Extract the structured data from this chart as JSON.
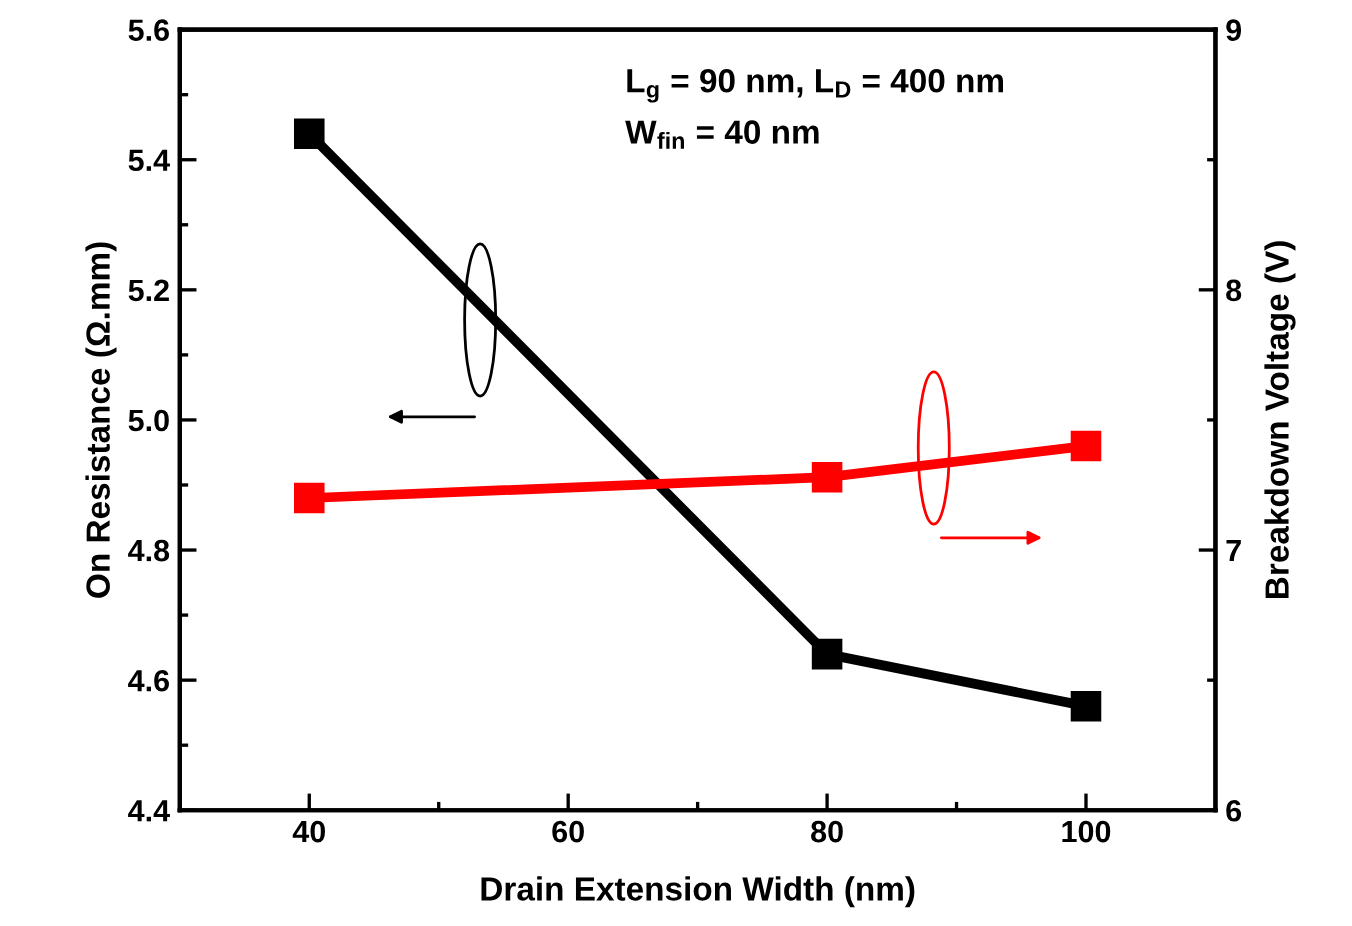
{
  "chart_data": {
    "type": "line",
    "xlabel": "Drain Extension Width (nm)",
    "ylabel": "On Resistance (Ω.mm)",
    "y2label": "Breakdown Voltage (V)",
    "x": [
      40,
      80,
      100
    ],
    "series": [
      {
        "color": "#000000",
        "values": [
          5.44,
          4.64,
          4.56
        ]
      },
      {
        "color": "#ff0000",
        "values": [
          7.2,
          7.28,
          7.4
        ],
        "axis": "y2"
      }
    ],
    "xlim": [
      30,
      110
    ],
    "xticks": [
      40,
      60,
      80,
      100
    ],
    "ylim": [
      4.4,
      5.6
    ],
    "yticks": [
      4.4,
      4.6,
      4.8,
      {
        "value": 5,
        "label": "5.0"
      },
      5.2,
      5.4,
      5.6
    ],
    "y2lim": [
      6,
      9
    ],
    "y2ticks": [
      6,
      7,
      8,
      9
    ],
    "marker": "square",
    "line_style": "solid",
    "grid": false,
    "legend": false,
    "annotations": [
      "L$_{g}$ = 90 nm, L$_{D}$ = 400 nm",
      "W$_{fin}$ = 40 nm"
    ]
  }
}
